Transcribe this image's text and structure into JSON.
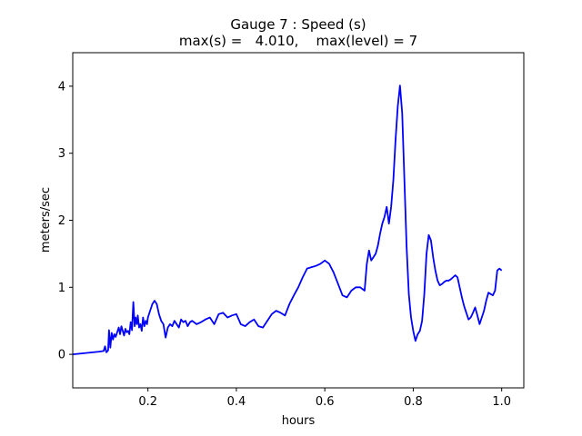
{
  "chart_data": {
    "type": "line",
    "title_line1": "Gauge 7 : Speed (s)",
    "title_line2": "max(s) =   4.010,    max(level) = 7",
    "xlabel": "hours",
    "ylabel": "meters/sec",
    "xlim": [
      0.03,
      1.05
    ],
    "ylim": [
      -0.5,
      4.5
    ],
    "xticks": [
      0.2,
      0.4,
      0.6,
      0.8,
      1.0
    ],
    "xtick_labels": [
      "0.2",
      "0.4",
      "0.6",
      "0.8",
      "1.0"
    ],
    "yticks": [
      0,
      1,
      2,
      3,
      4
    ],
    "ytick_labels": [
      "0",
      "1",
      "2",
      "3",
      "4"
    ],
    "grid": false,
    "line_color": "#0000ff",
    "series": [
      {
        "x": [
          0.03,
          0.06,
          0.09,
          0.1,
          0.103,
          0.106,
          0.11,
          0.112,
          0.115,
          0.118,
          0.121,
          0.124,
          0.127,
          0.13,
          0.134,
          0.137,
          0.14,
          0.143,
          0.146,
          0.149,
          0.152,
          0.155,
          0.158,
          0.161,
          0.164,
          0.167,
          0.17,
          0.172,
          0.175,
          0.177,
          0.18,
          0.183,
          0.186,
          0.189,
          0.192,
          0.195,
          0.198,
          0.2,
          0.205,
          0.21,
          0.215,
          0.22,
          0.225,
          0.23,
          0.235,
          0.24,
          0.245,
          0.25,
          0.255,
          0.26,
          0.265,
          0.27,
          0.275,
          0.28,
          0.285,
          0.29,
          0.295,
          0.3,
          0.31,
          0.32,
          0.33,
          0.34,
          0.35,
          0.36,
          0.37,
          0.38,
          0.39,
          0.4,
          0.41,
          0.42,
          0.43,
          0.44,
          0.45,
          0.46,
          0.47,
          0.48,
          0.49,
          0.5,
          0.51,
          0.52,
          0.53,
          0.54,
          0.55,
          0.56,
          0.57,
          0.58,
          0.59,
          0.6,
          0.61,
          0.62,
          0.63,
          0.64,
          0.65,
          0.66,
          0.67,
          0.68,
          0.69,
          0.695,
          0.7,
          0.705,
          0.71,
          0.715,
          0.72,
          0.725,
          0.73,
          0.735,
          0.74,
          0.745,
          0.75,
          0.755,
          0.76,
          0.765,
          0.77,
          0.775,
          0.78,
          0.785,
          0.79,
          0.795,
          0.8,
          0.805,
          0.81,
          0.815,
          0.82,
          0.825,
          0.83,
          0.835,
          0.84,
          0.845,
          0.85,
          0.855,
          0.86,
          0.865,
          0.87,
          0.875,
          0.88,
          0.885,
          0.89,
          0.895,
          0.9,
          0.905,
          0.91,
          0.915,
          0.92,
          0.925,
          0.93,
          0.935,
          0.94,
          0.945,
          0.95,
          0.955,
          0.96,
          0.965,
          0.97,
          0.975,
          0.98,
          0.985,
          0.99,
          0.995,
          1.0
        ],
        "y": [
          0.0,
          0.02,
          0.04,
          0.05,
          0.12,
          0.03,
          0.06,
          0.36,
          0.1,
          0.32,
          0.22,
          0.3,
          0.26,
          0.32,
          0.4,
          0.3,
          0.42,
          0.35,
          0.28,
          0.38,
          0.33,
          0.35,
          0.3,
          0.48,
          0.36,
          0.78,
          0.42,
          0.55,
          0.45,
          0.58,
          0.4,
          0.45,
          0.35,
          0.55,
          0.42,
          0.5,
          0.45,
          0.55,
          0.65,
          0.75,
          0.8,
          0.75,
          0.6,
          0.5,
          0.45,
          0.25,
          0.4,
          0.45,
          0.42,
          0.5,
          0.45,
          0.4,
          0.52,
          0.48,
          0.5,
          0.42,
          0.48,
          0.5,
          0.45,
          0.48,
          0.52,
          0.55,
          0.45,
          0.6,
          0.62,
          0.55,
          0.58,
          0.6,
          0.45,
          0.42,
          0.48,
          0.52,
          0.42,
          0.4,
          0.5,
          0.6,
          0.65,
          0.62,
          0.58,
          0.75,
          0.88,
          1.0,
          1.15,
          1.28,
          1.3,
          1.32,
          1.35,
          1.4,
          1.35,
          1.22,
          1.05,
          0.88,
          0.85,
          0.95,
          1.0,
          1.0,
          0.95,
          1.35,
          1.55,
          1.4,
          1.45,
          1.5,
          1.62,
          1.8,
          1.95,
          2.05,
          2.2,
          1.95,
          2.2,
          2.6,
          3.2,
          3.7,
          4.01,
          3.6,
          2.6,
          1.6,
          0.9,
          0.55,
          0.35,
          0.2,
          0.3,
          0.35,
          0.5,
          0.9,
          1.5,
          1.78,
          1.7,
          1.45,
          1.25,
          1.1,
          1.03,
          1.05,
          1.08,
          1.1,
          1.1,
          1.12,
          1.15,
          1.18,
          1.15,
          1.0,
          0.85,
          0.72,
          0.62,
          0.52,
          0.55,
          0.62,
          0.7,
          0.58,
          0.45,
          0.55,
          0.65,
          0.8,
          0.92,
          0.9,
          0.88,
          0.95,
          1.25,
          1.28,
          1.25
        ]
      }
    ]
  }
}
